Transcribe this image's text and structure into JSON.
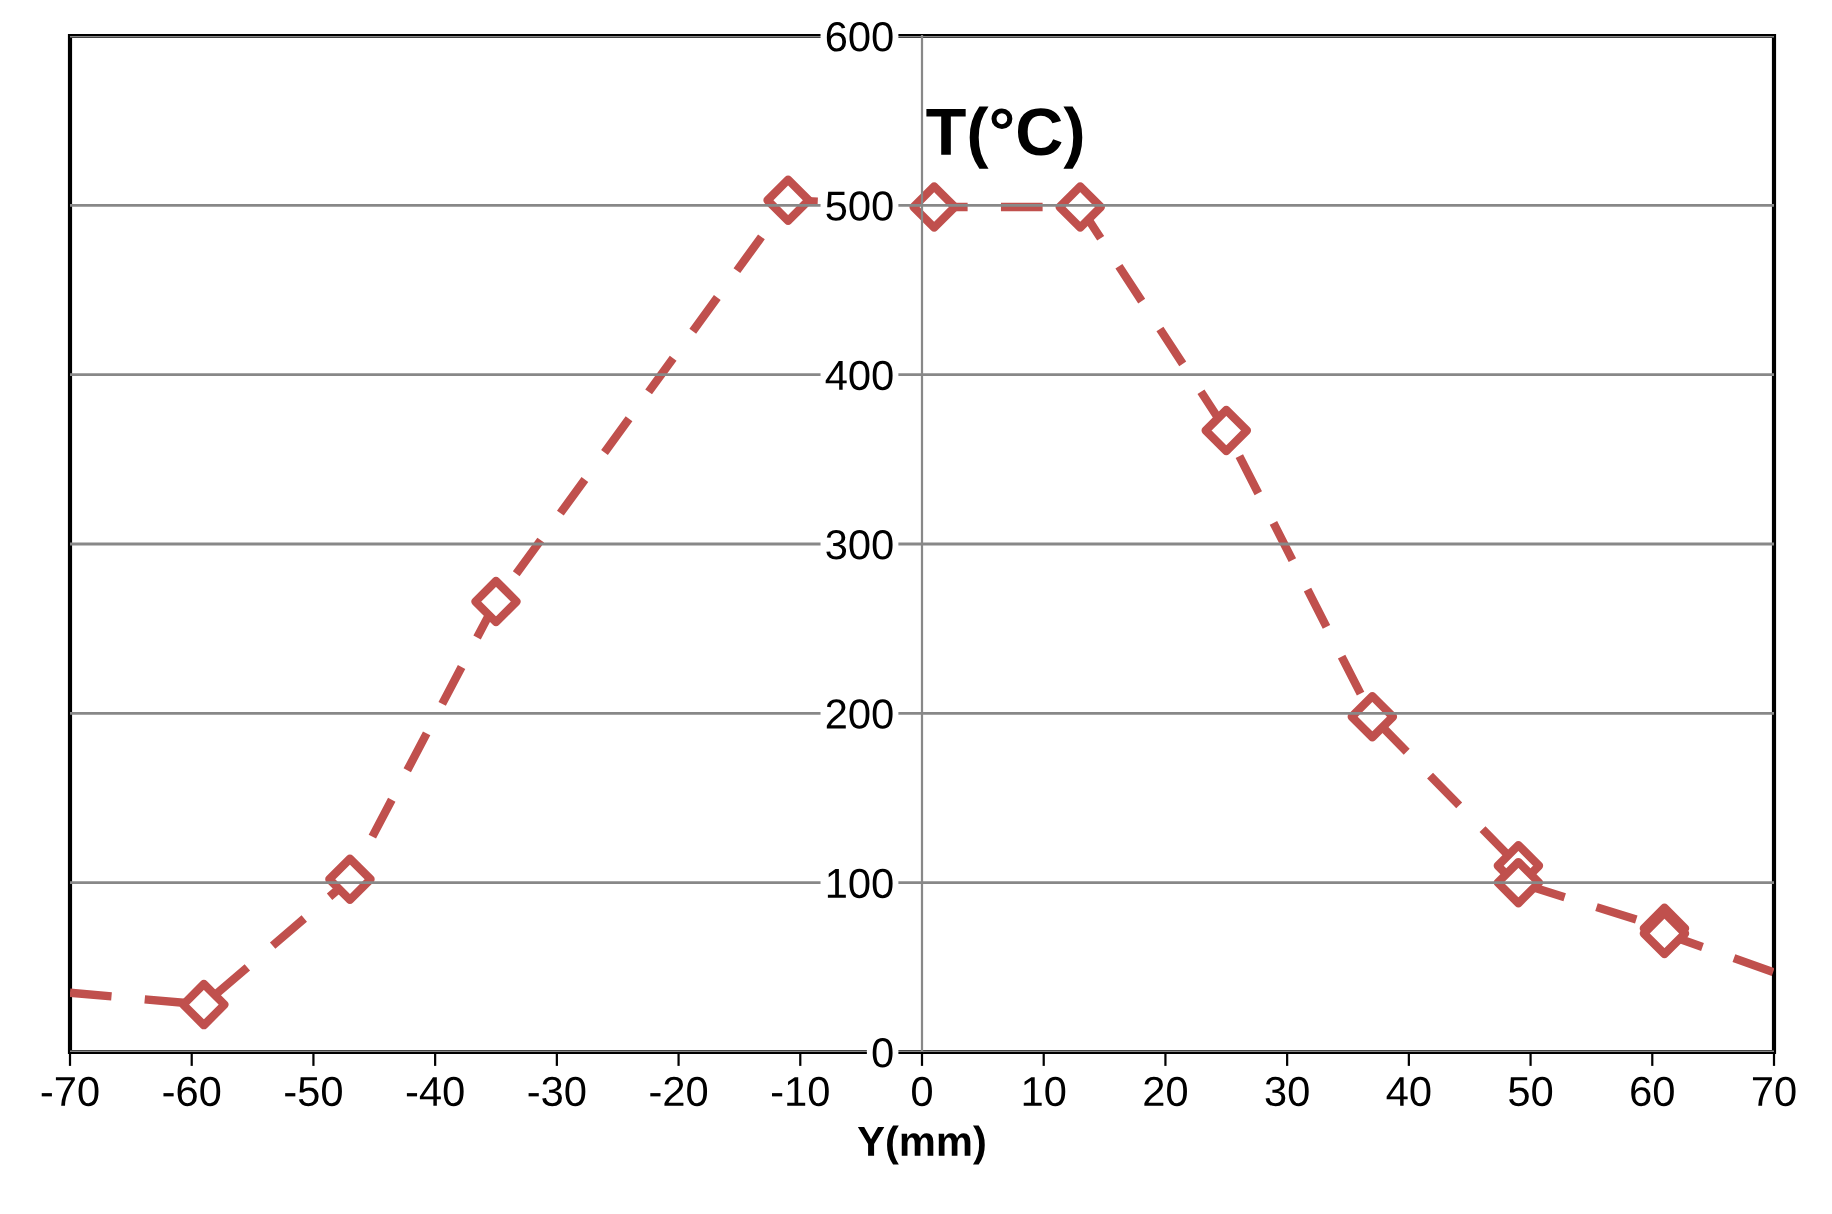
{
  "chart_data": {
    "type": "line",
    "xlabel": "Y(mm)",
    "ylabel": "T(°C)",
    "series": [
      {
        "color": "#c0504d",
        "line_style": "dashed",
        "marker": "none",
        "x": [
          -70,
          -59,
          -47,
          -35,
          -11,
          1,
          13,
          25,
          37,
          49,
          49,
          61,
          61,
          70
        ],
        "values": [
          35,
          28,
          102,
          266,
          503,
          499,
          499,
          367,
          198,
          110,
          100,
          73,
          70,
          47
        ]
      },
      {
        "type": "scatter",
        "color": "#c0504d",
        "marker": "diamond",
        "x": [
          -59,
          -47,
          -35,
          -11,
          1,
          13,
          25,
          37,
          49,
          49,
          61,
          61
        ],
        "values": [
          28,
          102,
          266,
          503,
          499,
          499,
          367,
          198,
          110,
          100,
          73,
          70
        ]
      }
    ],
    "xlim": [
      -70,
      70
    ],
    "xticks": [
      -70,
      -60,
      -50,
      -40,
      -30,
      -20,
      -10,
      0,
      10,
      20,
      30,
      40,
      50,
      60,
      70
    ],
    "ylim": [
      0,
      600
    ],
    "yticks": [
      0,
      100,
      200,
      300,
      400,
      500,
      600
    ],
    "grid": "y",
    "legend": false
  }
}
